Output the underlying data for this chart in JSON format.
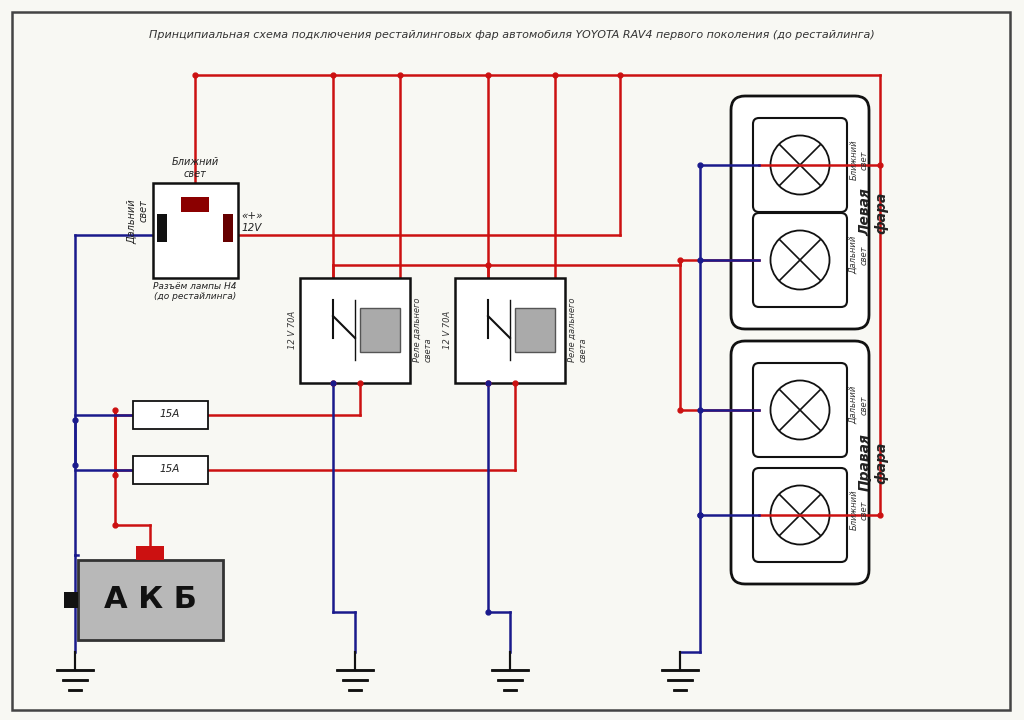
{
  "title": "Принципиальная схема подключения рестайлинговых фар автомобиля YOYOTA RAV4 первого поколения (до рестайлинга)",
  "bg_color": "#f8f8f3",
  "border_color": "#444444",
  "wire_red": "#cc1111",
  "wire_blue": "#1a1a8c",
  "wire_black": "#111111",
  "relay1_label": "12 V 70А",
  "relay2_label": "12 V 70А",
  "relay1_side_label": "Реле дальнего\nсвета",
  "relay2_side_label": "Реле дальнего\nсвета",
  "fuse1_label": "15А",
  "fuse2_label": "15А",
  "akb_label": "А К Б",
  "left_headlight_label": "Левая\nфара",
  "right_headlight_label": "Правая\nфара",
  "left_top_label": "Ближний\nсвет",
  "left_bottom_label": "Дальний\nсвет",
  "right_top_label": "Дальний\nсвет",
  "right_bottom_label": "Ближний\nсвет",
  "connector_top_label": "Ближний\nсвет",
  "connector_left_label": "Дальний\nсвет",
  "connector_right_label": "«+»\n12V",
  "connector_bottom_label": "Разъём лампы H4\n(до рестайлинга)"
}
